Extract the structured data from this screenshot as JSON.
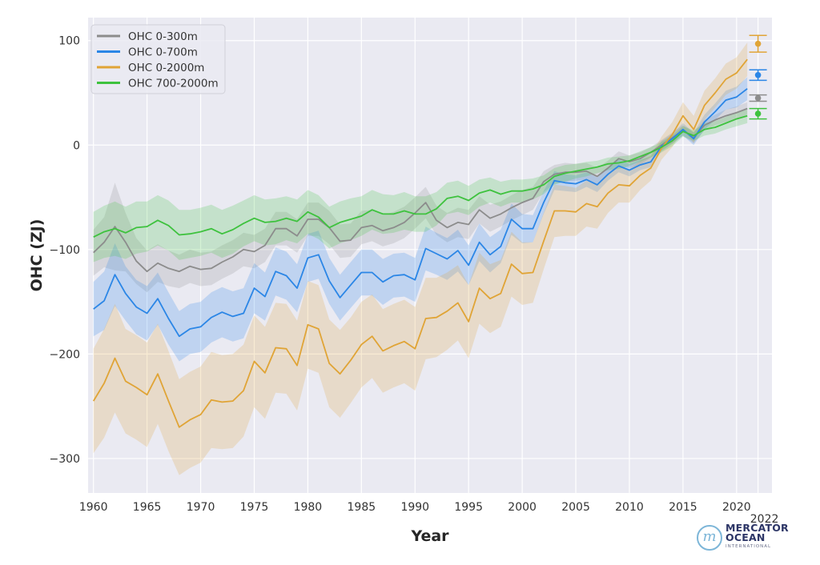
{
  "chart_data": {
    "type": "line",
    "title": "",
    "xlabel": "Year",
    "ylabel": "OHC (ZJ)",
    "xlim": [
      1959.5,
      2023.3
    ],
    "ylim": [
      -333,
      122
    ],
    "xticks": [
      1960,
      1965,
      1970,
      1975,
      1980,
      1985,
      1990,
      1995,
      2000,
      2005,
      2010,
      2015,
      2020
    ],
    "xtick_labels": [
      "1960",
      "1965",
      "1970",
      "1975",
      "1980",
      "1985",
      "1990",
      "1995",
      "2000",
      "2005",
      "2010",
      "2015",
      "2020"
    ],
    "extra_xtick_label": "2022",
    "yticks": [
      100,
      0,
      -100,
      -200,
      -300
    ],
    "ytick_labels": [
      "100",
      "0",
      "−100",
      "−200",
      "−300"
    ],
    "grid": true,
    "legend_position": "top-left",
    "x": [
      1960,
      1961,
      1962,
      1963,
      1964,
      1965,
      1966,
      1967,
      1968,
      1969,
      1970,
      1971,
      1972,
      1973,
      1974,
      1975,
      1976,
      1977,
      1978,
      1979,
      1980,
      1981,
      1982,
      1983,
      1984,
      1985,
      1986,
      1987,
      1988,
      1989,
      1990,
      1991,
      1992,
      1993,
      1994,
      1995,
      1996,
      1997,
      1998,
      1999,
      2000,
      2001,
      2002,
      2003,
      2004,
      2005,
      2006,
      2007,
      2008,
      2009,
      2010,
      2011,
      2012,
      2013,
      2014,
      2015,
      2016,
      2017,
      2018,
      2019,
      2020,
      2021
    ],
    "series": [
      {
        "name": "OHC 0-300m",
        "color": "#8c8c8c",
        "values": [
          -103,
          -93,
          -78,
          -93,
          -111,
          -121,
          -113,
          -118,
          -121,
          -116,
          -119,
          -118,
          -112,
          -107,
          -100,
          -102,
          -96,
          -80,
          -80,
          -87,
          -71,
          -71,
          -79,
          -92,
          -91,
          -79,
          -77,
          -82,
          -79,
          -74,
          -65,
          -55,
          -72,
          -79,
          -74,
          -76,
          -62,
          -70,
          -66,
          -60,
          -55,
          -51,
          -35,
          -28,
          -26,
          -26,
          -25,
          -30,
          -22,
          -13,
          -16,
          -13,
          -7,
          0,
          7,
          14,
          7,
          19,
          24,
          28,
          31,
          35
        ],
        "uncertainty": [
          22,
          24,
          42,
          28,
          22,
          20,
          18,
          17,
          16,
          16,
          16,
          16,
          16,
          16,
          16,
          16,
          16,
          16,
          16,
          16,
          16,
          16,
          16,
          16,
          16,
          16,
          15,
          15,
          15,
          15,
          15,
          15,
          14,
          14,
          14,
          14,
          13,
          13,
          12,
          12,
          12,
          11,
          10,
          9,
          9,
          8,
          8,
          8,
          7,
          7,
          6,
          6,
          5,
          5,
          5,
          5,
          5,
          5,
          5,
          6,
          6,
          6
        ],
        "point_2022": {
          "value": 45,
          "error": 3
        }
      },
      {
        "name": "OHC 0-700m",
        "color": "#2b86e6",
        "values": [
          -157,
          -149,
          -124,
          -142,
          -155,
          -161,
          -147,
          -166,
          -183,
          -176,
          -174,
          -165,
          -160,
          -164,
          -161,
          -137,
          -145,
          -121,
          -125,
          -137,
          -108,
          -105,
          -130,
          -146,
          -134,
          -122,
          -122,
          -131,
          -125,
          -124,
          -129,
          -99,
          -104,
          -109,
          -101,
          -115,
          -93,
          -105,
          -97,
          -71,
          -80,
          -80,
          -55,
          -34,
          -36,
          -37,
          -33,
          -38,
          -28,
          -20,
          -24,
          -19,
          -16,
          -1,
          6,
          15,
          6,
          22,
          32,
          43,
          46,
          54
        ],
        "uncertainty": [
          26,
          28,
          30,
          26,
          26,
          26,
          25,
          25,
          24,
          24,
          24,
          24,
          24,
          24,
          24,
          24,
          23,
          23,
          23,
          23,
          23,
          23,
          22,
          22,
          22,
          22,
          22,
          22,
          21,
          21,
          21,
          21,
          20,
          20,
          20,
          19,
          18,
          17,
          16,
          15,
          14,
          13,
          11,
          9,
          8,
          8,
          7,
          7,
          6,
          6,
          6,
          5,
          5,
          5,
          5,
          6,
          6,
          7,
          8,
          9,
          10,
          11
        ],
        "point_2022": {
          "value": 67,
          "error": 5
        }
      },
      {
        "name": "OHC 0-2000m",
        "color": "#e0a436",
        "values": [
          -245,
          -228,
          -204,
          -226,
          -232,
          -239,
          -219,
          -245,
          -270,
          -263,
          -258,
          -244,
          -246,
          -245,
          -235,
          -207,
          -218,
          -194,
          -195,
          -211,
          -172,
          -176,
          -209,
          -219,
          -206,
          -191,
          -183,
          -197,
          -192,
          -188,
          -195,
          -166,
          -165,
          -159,
          -151,
          -169,
          -137,
          -147,
          -142,
          -114,
          -123,
          -122,
          -92,
          -63,
          -63,
          -64,
          -56,
          -59,
          -46,
          -38,
          -39,
          -29,
          -22,
          -3,
          10,
          28,
          15,
          38,
          50,
          63,
          69,
          82
        ],
        "uncertainty": [
          50,
          52,
          52,
          50,
          50,
          50,
          48,
          48,
          46,
          46,
          46,
          46,
          45,
          45,
          44,
          44,
          44,
          43,
          43,
          43,
          42,
          42,
          42,
          42,
          41,
          41,
          40,
          40,
          40,
          40,
          40,
          39,
          38,
          37,
          36,
          35,
          34,
          33,
          32,
          31,
          30,
          29,
          27,
          25,
          24,
          23,
          22,
          21,
          19,
          17,
          16,
          14,
          12,
          11,
          12,
          13,
          13,
          14,
          14,
          15,
          15,
          16
        ],
        "point_2022": {
          "value": 97,
          "error": 8
        }
      },
      {
        "name": "OHC 700-2000m",
        "color": "#3ec23e",
        "values": [
          -88,
          -83,
          -80,
          -84,
          -79,
          -78,
          -72,
          -77,
          -86,
          -85,
          -83,
          -80,
          -85,
          -81,
          -75,
          -70,
          -74,
          -73,
          -70,
          -73,
          -64,
          -69,
          -79,
          -74,
          -71,
          -68,
          -62,
          -66,
          -66,
          -63,
          -66,
          -66,
          -61,
          -51,
          -49,
          -53,
          -46,
          -43,
          -47,
          -44,
          -44,
          -42,
          -38,
          -30,
          -27,
          -25,
          -23,
          -21,
          -18,
          -17,
          -15,
          -11,
          -7,
          -2,
          4,
          13,
          9,
          15,
          17,
          21,
          25,
          28
        ],
        "uncertainty": [
          24,
          25,
          26,
          25,
          25,
          24,
          24,
          24,
          24,
          23,
          23,
          23,
          23,
          23,
          22,
          22,
          22,
          22,
          21,
          21,
          21,
          21,
          20,
          20,
          20,
          19,
          19,
          19,
          18,
          18,
          17,
          17,
          16,
          15,
          15,
          14,
          13,
          12,
          12,
          11,
          11,
          10,
          9,
          8,
          8,
          7,
          7,
          6,
          6,
          6,
          5,
          5,
          5,
          5,
          5,
          5,
          5,
          6,
          6,
          6,
          7,
          7
        ],
        "point_2022": {
          "value": 30,
          "error": 5
        }
      }
    ]
  },
  "logo": {
    "name_line1": "MERCATOR",
    "name_line2": "OCEAN",
    "subtitle": "INTERNATIONAL",
    "glyph": "m"
  }
}
